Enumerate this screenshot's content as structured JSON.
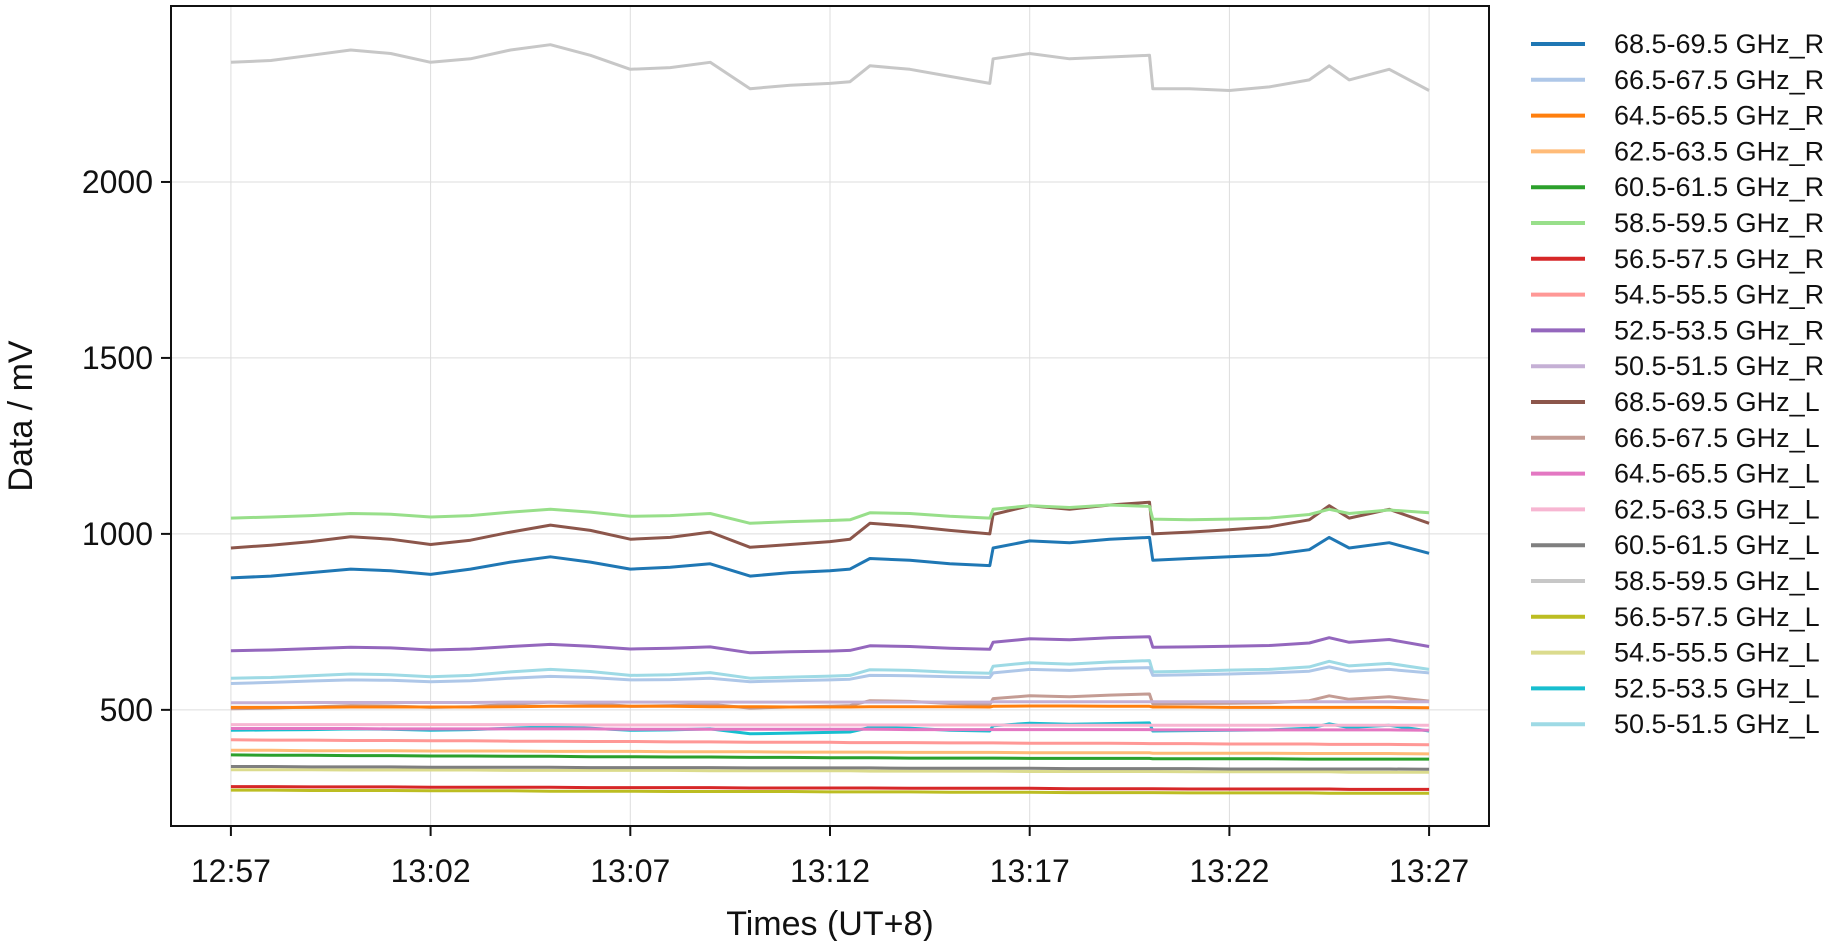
{
  "chart_data": {
    "type": "line",
    "xlabel": "Times (UT+8)",
    "ylabel": "Data / mV",
    "x_unit": "time (HH:MM)",
    "xlim": [
      "12:55:30",
      "13:28:30"
    ],
    "ylim": [
      170,
      2500
    ],
    "x_ticks": [
      "12:57",
      "13:02",
      "13:07",
      "13:12",
      "13:17",
      "13:22",
      "13:27"
    ],
    "y_ticks": [
      500,
      1000,
      1500,
      2000
    ],
    "grid": true,
    "legend_position": "outside right",
    "x_times": [
      "12:57",
      "12:58",
      "12:59",
      "13:00",
      "13:01",
      "13:02",
      "13:03",
      "13:04",
      "13:05",
      "13:06",
      "13:07",
      "13:08",
      "13:09",
      "13:10",
      "13:11",
      "13:12",
      "13:12:30",
      "13:13",
      "13:14",
      "13:15",
      "13:16",
      "13:16:05",
      "13:17",
      "13:18",
      "13:19",
      "13:20",
      "13:20:05",
      "13:21",
      "13:22",
      "13:23",
      "13:24",
      "13:24:30",
      "13:25",
      "13:26",
      "13:27"
    ],
    "series": [
      {
        "name": "68.5-69.5 GHz_R",
        "color": "#1f77b4",
        "values": [
          875,
          880,
          890,
          900,
          895,
          885,
          900,
          920,
          935,
          920,
          900,
          905,
          915,
          880,
          890,
          895,
          900,
          930,
          925,
          915,
          910,
          960,
          980,
          975,
          985,
          990,
          925,
          930,
          935,
          940,
          955,
          990,
          960,
          975,
          945
        ]
      },
      {
        "name": "66.5-67.5 GHz_R",
        "color": "#aec7e8",
        "values": [
          575,
          578,
          582,
          585,
          584,
          580,
          583,
          590,
          595,
          592,
          585,
          586,
          590,
          580,
          583,
          585,
          587,
          598,
          597,
          594,
          592,
          605,
          615,
          612,
          618,
          620,
          598,
          600,
          602,
          605,
          610,
          622,
          610,
          615,
          605
        ]
      },
      {
        "name": "64.5-65.5 GHz_R",
        "color": "#ff7f0e",
        "values": [
          507,
          507,
          507,
          508,
          508,
          508,
          508,
          509,
          510,
          510,
          510,
          510,
          509,
          509,
          508,
          508,
          508,
          509,
          509,
          509,
          508,
          510,
          511,
          511,
          510,
          510,
          508,
          508,
          507,
          507,
          507,
          507,
          507,
          507,
          506
        ]
      },
      {
        "name": "62.5-63.5 GHz_R",
        "color": "#ffbb78",
        "values": [
          385,
          385,
          384,
          384,
          384,
          383,
          383,
          383,
          382,
          382,
          382,
          381,
          381,
          381,
          380,
          380,
          380,
          380,
          379,
          379,
          379,
          379,
          378,
          378,
          378,
          378,
          377,
          377,
          377,
          377,
          376,
          376,
          376,
          376,
          375
        ]
      },
      {
        "name": "60.5-61.5 GHz_R",
        "color": "#2ca02c",
        "values": [
          372,
          371,
          371,
          370,
          370,
          369,
          369,
          368,
          368,
          367,
          367,
          366,
          366,
          365,
          365,
          364,
          364,
          364,
          363,
          363,
          363,
          363,
          362,
          362,
          362,
          362,
          361,
          361,
          361,
          361,
          360,
          360,
          360,
          360,
          360
        ]
      },
      {
        "name": "58.5-59.5 GHz_R",
        "color": "#98df8a",
        "values": [
          1045,
          1048,
          1052,
          1058,
          1056,
          1048,
          1052,
          1062,
          1070,
          1062,
          1050,
          1052,
          1058,
          1030,
          1035,
          1038,
          1040,
          1060,
          1058,
          1050,
          1045,
          1070,
          1080,
          1075,
          1082,
          1078,
          1042,
          1040,
          1042,
          1045,
          1055,
          1070,
          1058,
          1068,
          1060
        ]
      },
      {
        "name": "56.5-57.5 GHz_R",
        "color": "#d62728",
        "values": [
          282,
          282,
          281,
          281,
          281,
          280,
          280,
          280,
          280,
          279,
          279,
          279,
          279,
          278,
          278,
          278,
          278,
          278,
          277,
          277,
          277,
          277,
          277,
          276,
          276,
          276,
          276,
          275,
          275,
          275,
          275,
          275,
          274,
          274,
          274
        ]
      },
      {
        "name": "54.5-55.5 GHz_R",
        "color": "#ff9896",
        "values": [
          415,
          414,
          414,
          413,
          413,
          412,
          412,
          411,
          411,
          410,
          410,
          409,
          409,
          408,
          408,
          408,
          407,
          407,
          407,
          406,
          406,
          406,
          405,
          405,
          405,
          404,
          404,
          404,
          403,
          403,
          403,
          402,
          402,
          402,
          401
        ]
      },
      {
        "name": "52.5-53.5 GHz_R",
        "color": "#9467bd",
        "values": [
          668,
          670,
          674,
          678,
          676,
          670,
          673,
          680,
          686,
          681,
          673,
          675,
          679,
          662,
          665,
          667,
          669,
          682,
          680,
          675,
          672,
          692,
          702,
          699,
          705,
          708,
          678,
          679,
          681,
          683,
          690,
          705,
          692,
          700,
          680
        ]
      },
      {
        "name": "50.5-51.5 GHz_R",
        "color": "#c5b0d5",
        "values": [
          520,
          520,
          521,
          521,
          521,
          521,
          521,
          522,
          522,
          522,
          522,
          522,
          522,
          522,
          522,
          522,
          522,
          522,
          522,
          522,
          522,
          523,
          523,
          523,
          523,
          523,
          523,
          523,
          523,
          523,
          523,
          523,
          523,
          523,
          523
        ]
      },
      {
        "name": "68.5-69.5 GHz_L",
        "color": "#8c564b",
        "values": [
          960,
          968,
          978,
          992,
          985,
          970,
          982,
          1005,
          1025,
          1010,
          985,
          990,
          1005,
          962,
          970,
          978,
          985,
          1030,
          1022,
          1010,
          1000,
          1055,
          1080,
          1070,
          1082,
          1090,
          1000,
          1005,
          1012,
          1020,
          1040,
          1080,
          1045,
          1070,
          1030
        ]
      },
      {
        "name": "66.5-67.5 GHz_L",
        "color": "#c49c94",
        "values": [
          503,
          505,
          508,
          512,
          511,
          507,
          509,
          516,
          522,
          518,
          510,
          512,
          516,
          505,
          508,
          510,
          512,
          526,
          524,
          518,
          515,
          532,
          540,
          537,
          542,
          545,
          517,
          518,
          519,
          520,
          526,
          540,
          530,
          537,
          525
        ]
      },
      {
        "name": "64.5-65.5 GHz_L",
        "color": "#e377c2",
        "values": [
          447,
          447,
          447,
          447,
          446,
          446,
          446,
          446,
          446,
          446,
          445,
          445,
          445,
          445,
          445,
          445,
          445,
          445,
          444,
          444,
          444,
          444,
          444,
          444,
          444,
          444,
          443,
          443,
          443,
          443,
          443,
          443,
          443,
          443,
          442
        ]
      },
      {
        "name": "62.5-63.5 GHz_L",
        "color": "#f7b6d2",
        "values": [
          458,
          458,
          458,
          458,
          458,
          458,
          458,
          458,
          458,
          457,
          457,
          457,
          457,
          457,
          457,
          457,
          457,
          457,
          457,
          457,
          457,
          457,
          456,
          456,
          456,
          456,
          456,
          456,
          456,
          456,
          456,
          456,
          456,
          456,
          456
        ]
      },
      {
        "name": "60.5-61.5 GHz_L",
        "color": "#7f7f7f",
        "values": [
          339,
          339,
          338,
          338,
          338,
          337,
          337,
          337,
          337,
          336,
          336,
          336,
          336,
          335,
          335,
          335,
          335,
          335,
          334,
          334,
          334,
          334,
          334,
          333,
          333,
          333,
          333,
          333,
          332,
          332,
          332,
          332,
          332,
          332,
          331
        ]
      },
      {
        "name": "58.5-59.5 GHz_L",
        "color": "#c7c7c7",
        "values": [
          2340,
          2345,
          2360,
          2375,
          2365,
          2340,
          2350,
          2375,
          2390,
          2360,
          2320,
          2325,
          2340,
          2265,
          2275,
          2280,
          2285,
          2330,
          2320,
          2300,
          2280,
          2350,
          2365,
          2350,
          2355,
          2360,
          2265,
          2265,
          2260,
          2270,
          2290,
          2330,
          2290,
          2320,
          2260
        ]
      },
      {
        "name": "56.5-57.5 GHz_L",
        "color": "#bcbd22",
        "values": [
          272,
          272,
          271,
          271,
          271,
          270,
          270,
          270,
          269,
          269,
          269,
          268,
          268,
          268,
          268,
          267,
          267,
          267,
          267,
          266,
          266,
          266,
          266,
          265,
          265,
          265,
          265,
          264,
          264,
          264,
          264,
          263,
          263,
          263,
          263
        ]
      },
      {
        "name": "54.5-55.5 GHz_L",
        "color": "#dbdb8d",
        "values": [
          330,
          330,
          330,
          329,
          329,
          329,
          329,
          328,
          328,
          328,
          328,
          328,
          327,
          327,
          327,
          327,
          327,
          326,
          326,
          326,
          326,
          326,
          325,
          325,
          325,
          325,
          325,
          324,
          324,
          324,
          324,
          324,
          323,
          323,
          323
        ]
      },
      {
        "name": "52.5-53.5 GHz_L",
        "color": "#17becf",
        "values": [
          442,
          443,
          444,
          446,
          445,
          442,
          444,
          448,
          452,
          448,
          442,
          443,
          446,
          432,
          434,
          436,
          437,
          450,
          448,
          442,
          440,
          455,
          462,
          459,
          461,
          463,
          440,
          441,
          442,
          443,
          448,
          460,
          450,
          456,
          440
        ]
      },
      {
        "name": "50.5-51.5 GHz_L",
        "color": "#9edae5",
        "values": [
          590,
          592,
          597,
          602,
          600,
          594,
          598,
          608,
          615,
          609,
          598,
          600,
          606,
          590,
          593,
          596,
          598,
          614,
          612,
          607,
          604,
          624,
          634,
          630,
          636,
          640,
          608,
          610,
          613,
          615,
          622,
          638,
          625,
          632,
          615
        ]
      }
    ]
  }
}
